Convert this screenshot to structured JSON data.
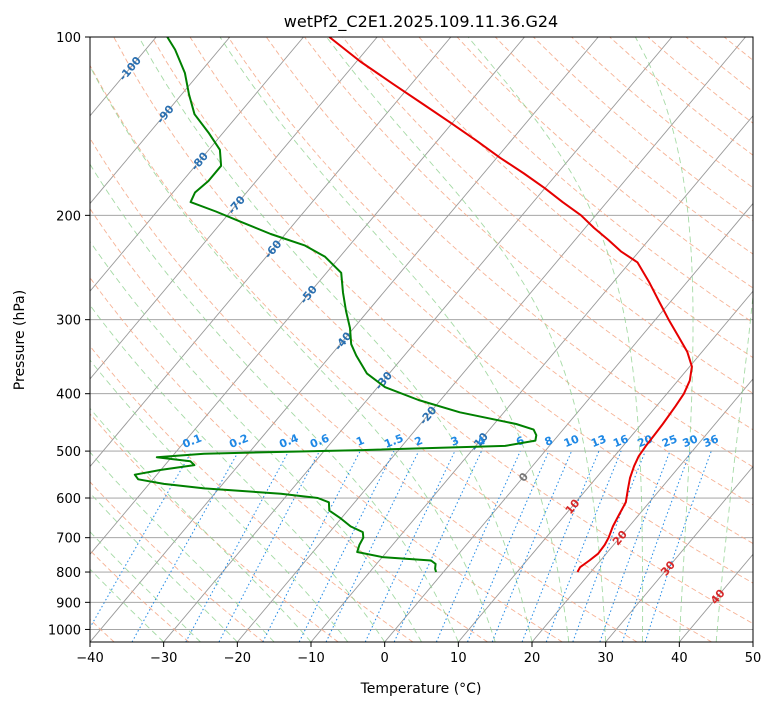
{
  "chart_data": {
    "type": "line",
    "title": "wetPf2_C2E1.2025.109.11.36.G24",
    "xlabel": "Temperature (°C)",
    "ylabel": "Pressure (hPa)",
    "xlim": [
      -40,
      50
    ],
    "ylim": [
      1050,
      100
    ],
    "y_scale": "log",
    "x_ticks": [
      -40,
      -30,
      -20,
      -10,
      0,
      10,
      20,
      30,
      40,
      50
    ],
    "x_tick_labels": [
      "−40",
      "−30",
      "−20",
      "−10",
      "0",
      "10",
      "20",
      "30",
      "40",
      "50"
    ],
    "y_ticks": [
      100,
      200,
      300,
      400,
      500,
      600,
      700,
      800,
      900,
      1000
    ],
    "y_tick_labels": [
      "100",
      "200",
      "300",
      "400",
      "500",
      "600",
      "700",
      "800",
      "900",
      "1000"
    ],
    "grid": true,
    "colors": {
      "temperature": "#e60000",
      "dewpoint": "#008000",
      "isotherm": "#999999",
      "dry_adiabat": "#f4a582",
      "moist_adiabat": "#8fd18f",
      "mixing_ratio": "#1e88e5",
      "label_blue": "#2a6fb0",
      "label_red": "#d62728",
      "label_gray": "#777777"
    },
    "series": [
      {
        "name": "",
        "role": "temperature",
        "points": [
          [
            800,
            18.2
          ],
          [
            785,
            18.0
          ],
          [
            765,
            18.5
          ],
          [
            745,
            18.9
          ],
          [
            720,
            18.8
          ],
          [
            700,
            18.5
          ],
          [
            670,
            17.8
          ],
          [
            640,
            17.3
          ],
          [
            610,
            16.8
          ],
          [
            580,
            15.6
          ],
          [
            555,
            14.6
          ],
          [
            530,
            13.8
          ],
          [
            510,
            13.3
          ],
          [
            490,
            13.1
          ],
          [
            470,
            13.0
          ],
          [
            450,
            12.9
          ],
          [
            420,
            12.6
          ],
          [
            400,
            12.3
          ],
          [
            380,
            11.6
          ],
          [
            360,
            10.3
          ],
          [
            340,
            8.0
          ],
          [
            320,
            5.0
          ],
          [
            300,
            1.8
          ],
          [
            280,
            -1.5
          ],
          [
            260,
            -5.0
          ],
          [
            240,
            -9.0
          ],
          [
            230,
            -12.5
          ],
          [
            220,
            -15.5
          ],
          [
            210,
            -18.8
          ],
          [
            200,
            -22.0
          ],
          [
            190,
            -26.0
          ],
          [
            180,
            -30.0
          ],
          [
            170,
            -34.5
          ],
          [
            160,
            -39.5
          ],
          [
            150,
            -44.5
          ],
          [
            140,
            -50.0
          ],
          [
            130,
            -56.0
          ],
          [
            120,
            -62.5
          ],
          [
            110,
            -69.5
          ],
          [
            100,
            -76.5
          ]
        ]
      },
      {
        "name": "",
        "role": "dewpoint",
        "points": [
          [
            800,
            -1.0
          ],
          [
            790,
            -1.5
          ],
          [
            775,
            -2.0
          ],
          [
            765,
            -3.0
          ],
          [
            755,
            -10.0
          ],
          [
            740,
            -14.0
          ],
          [
            720,
            -14.5
          ],
          [
            700,
            -14.8
          ],
          [
            685,
            -15.5
          ],
          [
            670,
            -17.8
          ],
          [
            650,
            -20.0
          ],
          [
            630,
            -22.5
          ],
          [
            610,
            -23.5
          ],
          [
            600,
            -25.5
          ],
          [
            590,
            -31.0
          ],
          [
            578,
            -42.0
          ],
          [
            568,
            -48.0
          ],
          [
            558,
            -52.0
          ],
          [
            548,
            -53.0
          ],
          [
            538,
            -50.0
          ],
          [
            528,
            -46.0
          ],
          [
            520,
            -47.0
          ],
          [
            512,
            -52.0
          ],
          [
            505,
            -46.0
          ],
          [
            498,
            -25.0
          ],
          [
            490,
            -6.0
          ],
          [
            480,
            -2.5
          ],
          [
            470,
            -3.0
          ],
          [
            460,
            -4.0
          ],
          [
            450,
            -7.0
          ],
          [
            430,
            -16.0
          ],
          [
            410,
            -23.0
          ],
          [
            390,
            -29.0
          ],
          [
            370,
            -33.0
          ],
          [
            345,
            -36.5
          ],
          [
            330,
            -38.5
          ],
          [
            310,
            -40.5
          ],
          [
            290,
            -43.0
          ],
          [
            270,
            -45.5
          ],
          [
            250,
            -48.0
          ],
          [
            235,
            -52.0
          ],
          [
            225,
            -56.0
          ],
          [
            215,
            -62.0
          ],
          [
            205,
            -67.5
          ],
          [
            197,
            -72.0
          ],
          [
            190,
            -76.5
          ],
          [
            183,
            -77.0
          ],
          [
            175,
            -76.5
          ],
          [
            165,
            -76.5
          ],
          [
            155,
            -78.5
          ],
          [
            145,
            -82.0
          ],
          [
            135,
            -86.0
          ],
          [
            125,
            -89.0
          ],
          [
            115,
            -92.0
          ],
          [
            105,
            -96.0
          ],
          [
            100,
            -98.5
          ]
        ]
      }
    ],
    "isotherm_labels": [
      {
        "text": "-100",
        "t": -100,
        "p": 113
      },
      {
        "text": "-90",
        "t": -90,
        "p": 135
      },
      {
        "text": "-80",
        "t": -80,
        "p": 162
      },
      {
        "text": "-70",
        "t": -70,
        "p": 192
      },
      {
        "text": "-60",
        "t": -60,
        "p": 228
      },
      {
        "text": "-50",
        "t": -50,
        "p": 272
      },
      {
        "text": "-40",
        "t": -40,
        "p": 326
      },
      {
        "text": "-30",
        "t": -30,
        "p": 380
      },
      {
        "text": "-20",
        "t": -20,
        "p": 435
      },
      {
        "text": "-10",
        "t": -10,
        "p": 482
      },
      {
        "text": "0",
        "t": 0,
        "p": 553
      },
      {
        "text": "10",
        "t": 10,
        "p": 620
      },
      {
        "text": "20",
        "t": 20,
        "p": 700
      },
      {
        "text": "30",
        "t": 30,
        "p": 788
      },
      {
        "text": "40",
        "t": 40,
        "p": 880
      }
    ],
    "mixing_ratio_labels": [
      "0.1",
      "0.2",
      "0.4",
      "0.6",
      "1",
      "1.5",
      "2",
      "3",
      "4",
      "6",
      "8",
      "10",
      "13",
      "16",
      "20",
      "25",
      "30",
      "36"
    ],
    "mixing_ratio_label_pressure": 495
  }
}
